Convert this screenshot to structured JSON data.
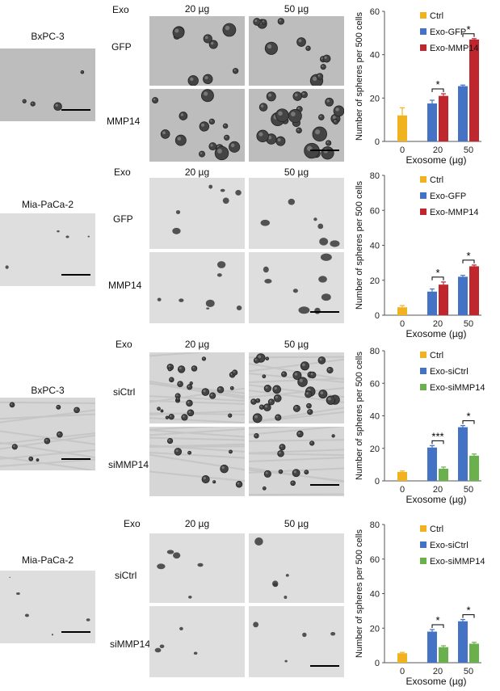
{
  "panels": [
    {
      "cell_line": "BxPC-3",
      "exo_label": "Exo",
      "dose1": "20 µg",
      "dose2": "50 µg",
      "row1": "GFP",
      "row2": "MMP14",
      "style": "dark",
      "colors": {
        "ctrl": "#f0b21e",
        "a": "#4472c4",
        "b": "#c0262d"
      }
    },
    {
      "cell_line": "Mia-PaCa-2",
      "exo_label": "Exo",
      "dose1": "20 µg",
      "dose2": "50 µg",
      "row1": "GFP",
      "row2": "MMP14",
      "style": "light",
      "colors": {
        "ctrl": "#f0b21e",
        "a": "#4472c4",
        "b": "#c0262d"
      }
    },
    {
      "cell_line": "BxPC-3",
      "exo_label": "Exo",
      "dose1": "20 µg",
      "dose2": "50 µg",
      "row1": "siCtrl",
      "row2": "siMMP14",
      "style": "textured",
      "colors": {
        "ctrl": "#f0b21e",
        "a": "#4472c4",
        "b": "#6ab04c"
      }
    },
    {
      "cell_line": "Mia-PaCa-2",
      "exo_label": "Exo",
      "dose1": "20 µg",
      "dose2": "50 µg",
      "row1": "siCtrl",
      "row2": "siMMP14",
      "style": "light",
      "colors": {
        "ctrl": "#f0b21e",
        "a": "#4472c4",
        "b": "#6ab04c"
      }
    }
  ],
  "chart_data": [
    {
      "type": "bar",
      "ylabel": "Number of spheres per 500 cells",
      "xlabel": "Exosome (µg)",
      "categories": [
        "0",
        "20",
        "50"
      ],
      "ylim": [
        0,
        60
      ],
      "yticks": [
        0,
        20,
        40,
        60
      ],
      "legend": [
        "Ctrl",
        "Exo-GFP",
        "Exo-MMP14"
      ],
      "ctrl": {
        "value": 12,
        "err": 3.5
      },
      "series": [
        {
          "name": "Exo-GFP",
          "values": [
            null,
            17.5,
            25.5
          ],
          "err": [
            null,
            1.5,
            0.5
          ]
        },
        {
          "name": "Exo-MMP14",
          "values": [
            null,
            21,
            47
          ],
          "err": [
            null,
            1,
            0.4
          ]
        }
      ],
      "annotations": [
        "*",
        "*"
      ]
    },
    {
      "type": "bar",
      "ylabel": "Number of spheres per 500 cells",
      "xlabel": "Exosome (µg)",
      "categories": [
        "0",
        "20",
        "50"
      ],
      "ylim": [
        0,
        80
      ],
      "yticks": [
        0,
        20,
        40,
        60,
        80
      ],
      "legend": [
        "Ctrl",
        "Exo-GFP",
        "Exo-MMP14"
      ],
      "ctrl": {
        "value": 4.5,
        "err": 1
      },
      "series": [
        {
          "name": "Exo-GFP",
          "values": [
            null,
            13.5,
            22
          ],
          "err": [
            null,
            1.5,
            0.8
          ]
        },
        {
          "name": "Exo-MMP14",
          "values": [
            null,
            17.5,
            28
          ],
          "err": [
            null,
            1.5,
            0.7
          ]
        }
      ],
      "annotations": [
        "*",
        "*"
      ]
    },
    {
      "type": "bar",
      "ylabel": "Number of spheres per 500 cells",
      "xlabel": "Exosome (µg)",
      "categories": [
        "0",
        "20",
        "50"
      ],
      "ylim": [
        0,
        80
      ],
      "yticks": [
        0,
        20,
        40,
        60,
        80
      ],
      "legend": [
        "Ctrl",
        "Exo-siCtrl",
        "Exo-siMMP14"
      ],
      "ctrl": {
        "value": 5.5,
        "err": 0.6
      },
      "series": [
        {
          "name": "Exo-siCtrl",
          "values": [
            null,
            20.5,
            33
          ],
          "err": [
            null,
            1.2,
            1
          ]
        },
        {
          "name": "Exo-siMMP14",
          "values": [
            null,
            7.5,
            15.5
          ],
          "err": [
            null,
            1,
            1
          ]
        }
      ],
      "annotations": [
        "***",
        "*"
      ]
    },
    {
      "type": "bar",
      "ylabel": "Number of spheres per 500 cells",
      "xlabel": "Exosome (µg)",
      "categories": [
        "0",
        "20",
        "50"
      ],
      "ylim": [
        0,
        80
      ],
      "yticks": [
        0,
        20,
        40,
        60,
        80
      ],
      "legend": [
        "Ctrl",
        "Exo-siCtrl",
        "Exo-siMMP14"
      ],
      "ctrl": {
        "value": 5.5,
        "err": 0.5
      },
      "series": [
        {
          "name": "Exo-siCtrl",
          "values": [
            null,
            18,
            24
          ],
          "err": [
            null,
            1.2,
            1
          ]
        },
        {
          "name": "Exo-siMMP14",
          "values": [
            null,
            9,
            11
          ],
          "err": [
            null,
            0.8,
            0.8
          ]
        }
      ],
      "annotations": [
        "*",
        "*"
      ]
    }
  ]
}
